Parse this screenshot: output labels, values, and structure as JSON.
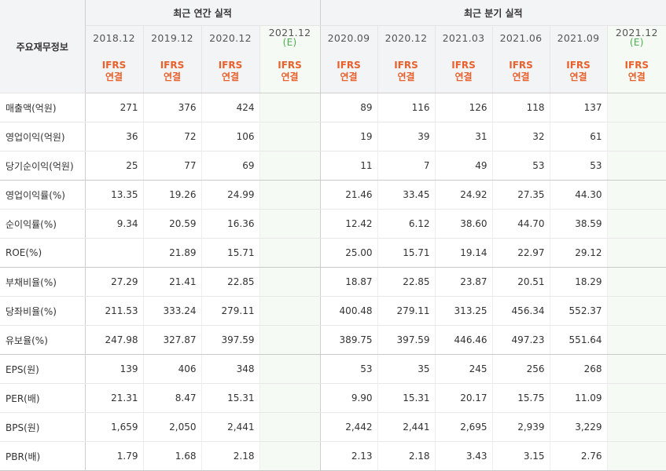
{
  "header": {
    "corner_label": "주요재무정보",
    "annual_group": "최근 연간 실적",
    "quarter_group": "최근 분기 실적",
    "annual_periods": [
      "2018.12",
      "2019.12",
      "2020.12"
    ],
    "annual_estimate": {
      "period": "2021.12",
      "mark": "(E)"
    },
    "quarter_periods": [
      "2020.09",
      "2020.12",
      "2021.03",
      "2021.06",
      "2021.09"
    ],
    "quarter_estimate": {
      "period": "2021.12",
      "mark": "(E)"
    },
    "basis_line1": "IFRS",
    "basis_line2": "연결"
  },
  "rows": [
    {
      "label": "매출액(억원)",
      "annual": [
        "271",
        "376",
        "424"
      ],
      "annual_est": "",
      "quarter": [
        "89",
        "116",
        "126",
        "118",
        "137"
      ],
      "quarter_est": ""
    },
    {
      "label": "영업이익(억원)",
      "annual": [
        "36",
        "72",
        "106"
      ],
      "annual_est": "",
      "quarter": [
        "19",
        "39",
        "31",
        "32",
        "61"
      ],
      "quarter_est": ""
    },
    {
      "label": "당기순이익(억원)",
      "annual": [
        "25",
        "77",
        "69"
      ],
      "annual_est": "",
      "quarter": [
        "11",
        "7",
        "49",
        "53",
        "53"
      ],
      "quarter_est": ""
    },
    {
      "label": "영업이익률(%)",
      "annual": [
        "13.35",
        "19.26",
        "24.99"
      ],
      "annual_est": "",
      "quarter": [
        "21.46",
        "33.45",
        "24.92",
        "27.35",
        "44.30"
      ],
      "quarter_est": ""
    },
    {
      "label": "순이익률(%)",
      "annual": [
        "9.34",
        "20.59",
        "16.36"
      ],
      "annual_est": "",
      "quarter": [
        "12.42",
        "6.12",
        "38.60",
        "44.70",
        "38.59"
      ],
      "quarter_est": ""
    },
    {
      "label": "ROE(%)",
      "annual": [
        "",
        "21.89",
        "15.71"
      ],
      "annual_est": "",
      "quarter": [
        "25.00",
        "15.71",
        "19.14",
        "22.97",
        "29.12"
      ],
      "quarter_est": ""
    },
    {
      "label": "부채비율(%)",
      "annual": [
        "27.29",
        "21.41",
        "22.85"
      ],
      "annual_est": "",
      "quarter": [
        "18.87",
        "22.85",
        "23.87",
        "20.51",
        "18.29"
      ],
      "quarter_est": ""
    },
    {
      "label": "당좌비율(%)",
      "annual": [
        "211.53",
        "333.24",
        "279.11"
      ],
      "annual_est": "",
      "quarter": [
        "400.48",
        "279.11",
        "313.25",
        "456.34",
        "552.37"
      ],
      "quarter_est": ""
    },
    {
      "label": "유보율(%)",
      "annual": [
        "247.98",
        "327.87",
        "397.59"
      ],
      "annual_est": "",
      "quarter": [
        "389.75",
        "397.59",
        "446.46",
        "497.23",
        "551.64"
      ],
      "quarter_est": ""
    },
    {
      "label": "EPS(원)",
      "annual": [
        "139",
        "406",
        "348"
      ],
      "annual_est": "",
      "quarter": [
        "53",
        "35",
        "245",
        "256",
        "268"
      ],
      "quarter_est": ""
    },
    {
      "label": "PER(배)",
      "annual": [
        "21.31",
        "8.47",
        "15.31"
      ],
      "annual_est": "",
      "quarter": [
        "9.90",
        "15.31",
        "20.17",
        "15.75",
        "11.09"
      ],
      "quarter_est": ""
    },
    {
      "label": "BPS(원)",
      "annual": [
        "1,659",
        "2,050",
        "2,441"
      ],
      "annual_est": "",
      "quarter": [
        "2,442",
        "2,441",
        "2,695",
        "2,939",
        "3,229"
      ],
      "quarter_est": ""
    },
    {
      "label": "PBR(배)",
      "annual": [
        "1.79",
        "1.68",
        "2.18"
      ],
      "annual_est": "",
      "quarter": [
        "2.13",
        "2.18",
        "3.43",
        "3.15",
        "2.76"
      ],
      "quarter_est": ""
    }
  ],
  "colors": {
    "header_bg": "#f3f4f6",
    "estimate_bg": "#f5faf4",
    "ifrs_text": "#e8612c",
    "estimate_mark": "#4caf50",
    "body_text": "#333333"
  }
}
